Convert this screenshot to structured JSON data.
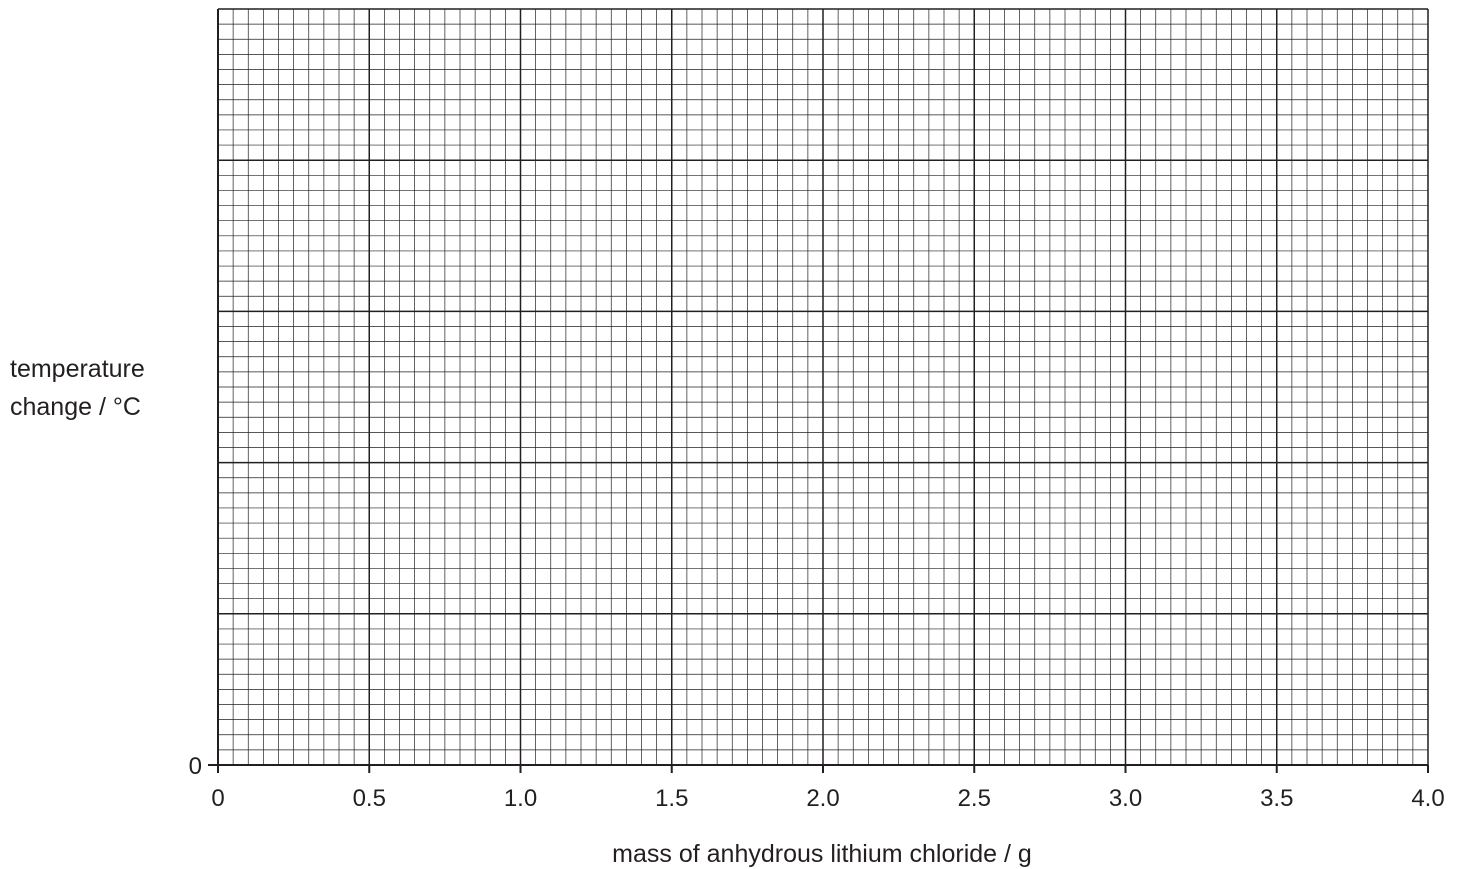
{
  "chart_data": {
    "type": "scatter",
    "title": "",
    "xlabel": "mass of anhydrous lithium chloride / g",
    "ylabel_lines": [
      "temperature",
      "change / °C"
    ],
    "xlim": [
      0,
      4.0
    ],
    "x_ticks": [
      "0",
      "0.5",
      "1.0",
      "1.5",
      "2.0",
      "2.5",
      "3.0",
      "3.5",
      "4.0"
    ],
    "y_ticks": [
      "0"
    ],
    "grid": true,
    "grid_color": "#231f20",
    "series": []
  }
}
